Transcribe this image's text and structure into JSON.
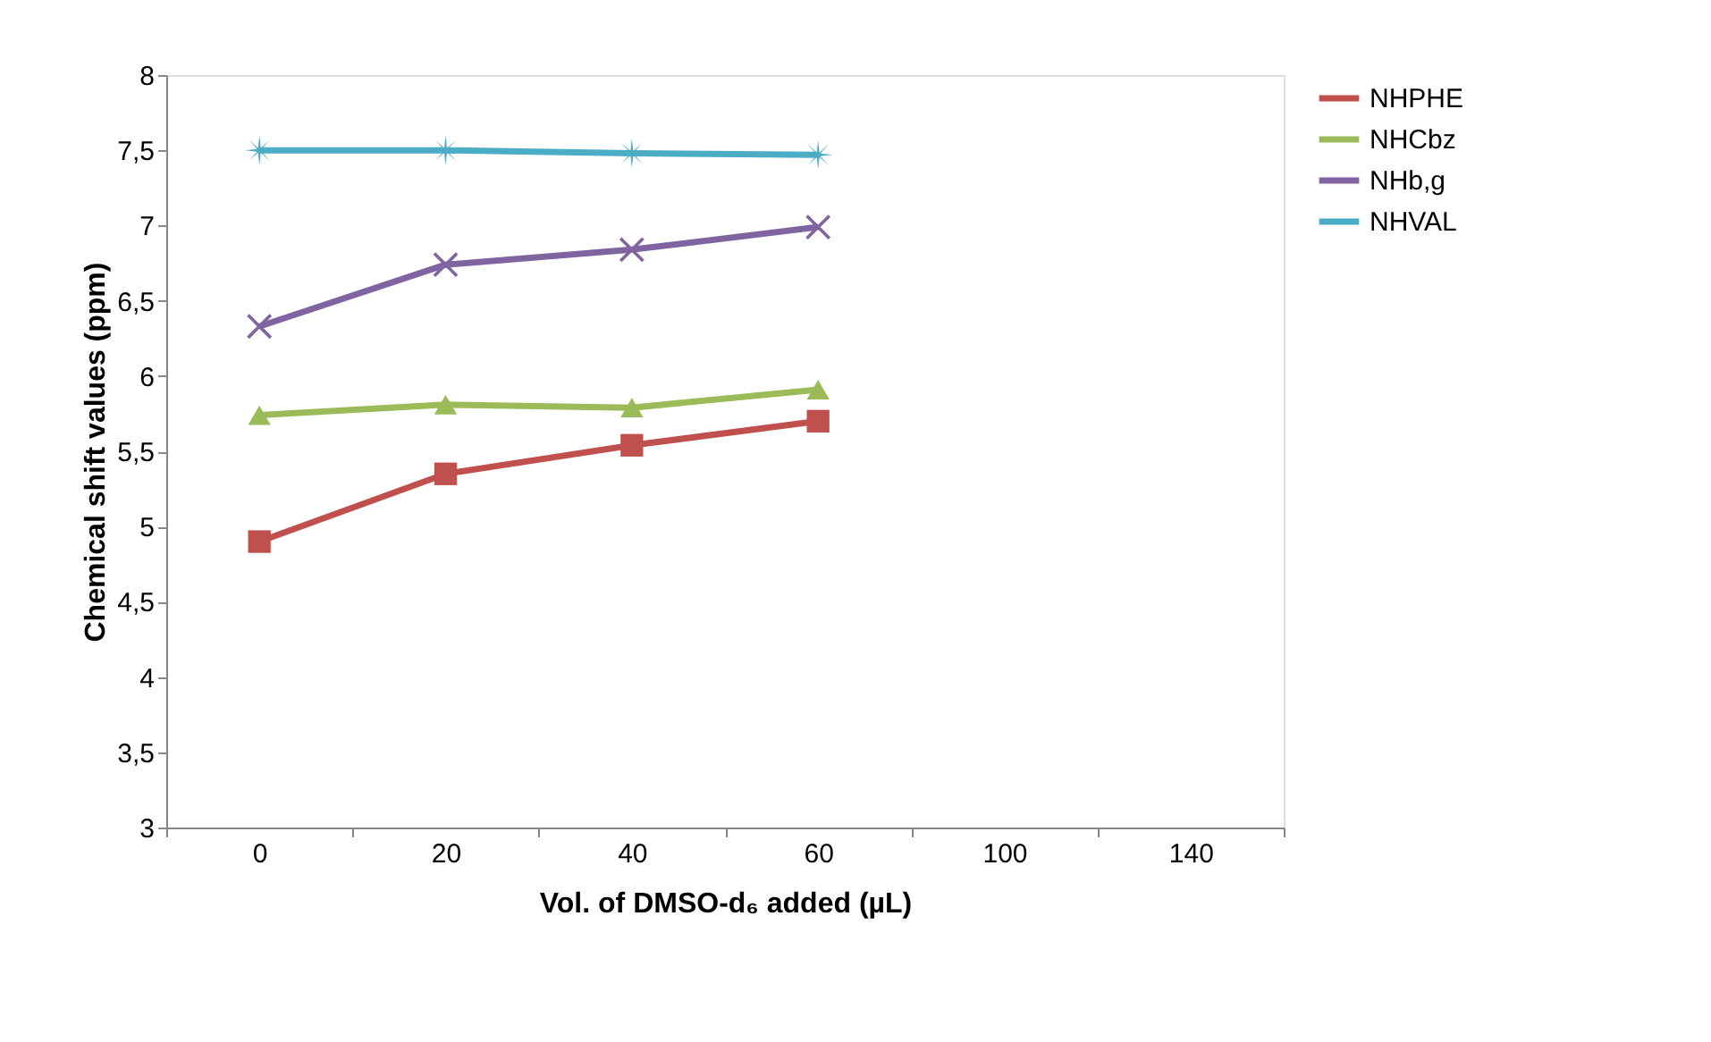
{
  "chart_data": {
    "type": "line",
    "xlabel": "Vol. of DMSO-d₆ added (µL)",
    "ylabel": "Chemical shift values (ppm)",
    "categories": [
      "0",
      "20",
      "40",
      "60",
      "100",
      "140"
    ],
    "ylim": [
      3,
      8
    ],
    "yticks": [
      3,
      {
        "value": 3.5,
        "label": "3,5"
      },
      4,
      {
        "value": 4.5,
        "label": "4,5"
      },
      5,
      {
        "value": 5.5,
        "label": "5,5"
      },
      6,
      {
        "value": 6.5,
        "label": "6,5"
      },
      7,
      {
        "value": 7.5,
        "label": "7,5"
      },
      8
    ],
    "grid": false,
    "legend": "right",
    "series": [
      {
        "name": "NHPHE",
        "color": "#c0504d",
        "marker": "square",
        "values": [
          4.9,
          5.35,
          5.54,
          5.7,
          null,
          null
        ]
      },
      {
        "name": "NHCbz",
        "color": "#9bbb59",
        "marker": "triangle",
        "values": [
          5.74,
          5.81,
          5.79,
          5.91,
          null,
          null
        ]
      },
      {
        "name": "NHb,g",
        "color": "#8064a2",
        "marker": "cross",
        "values": [
          6.33,
          6.74,
          6.84,
          6.99,
          null,
          null
        ]
      },
      {
        "name": "NHVAL",
        "color": "#4bacc6",
        "marker": "star",
        "values": [
          7.5,
          7.5,
          7.48,
          7.47,
          null,
          null
        ]
      }
    ]
  }
}
